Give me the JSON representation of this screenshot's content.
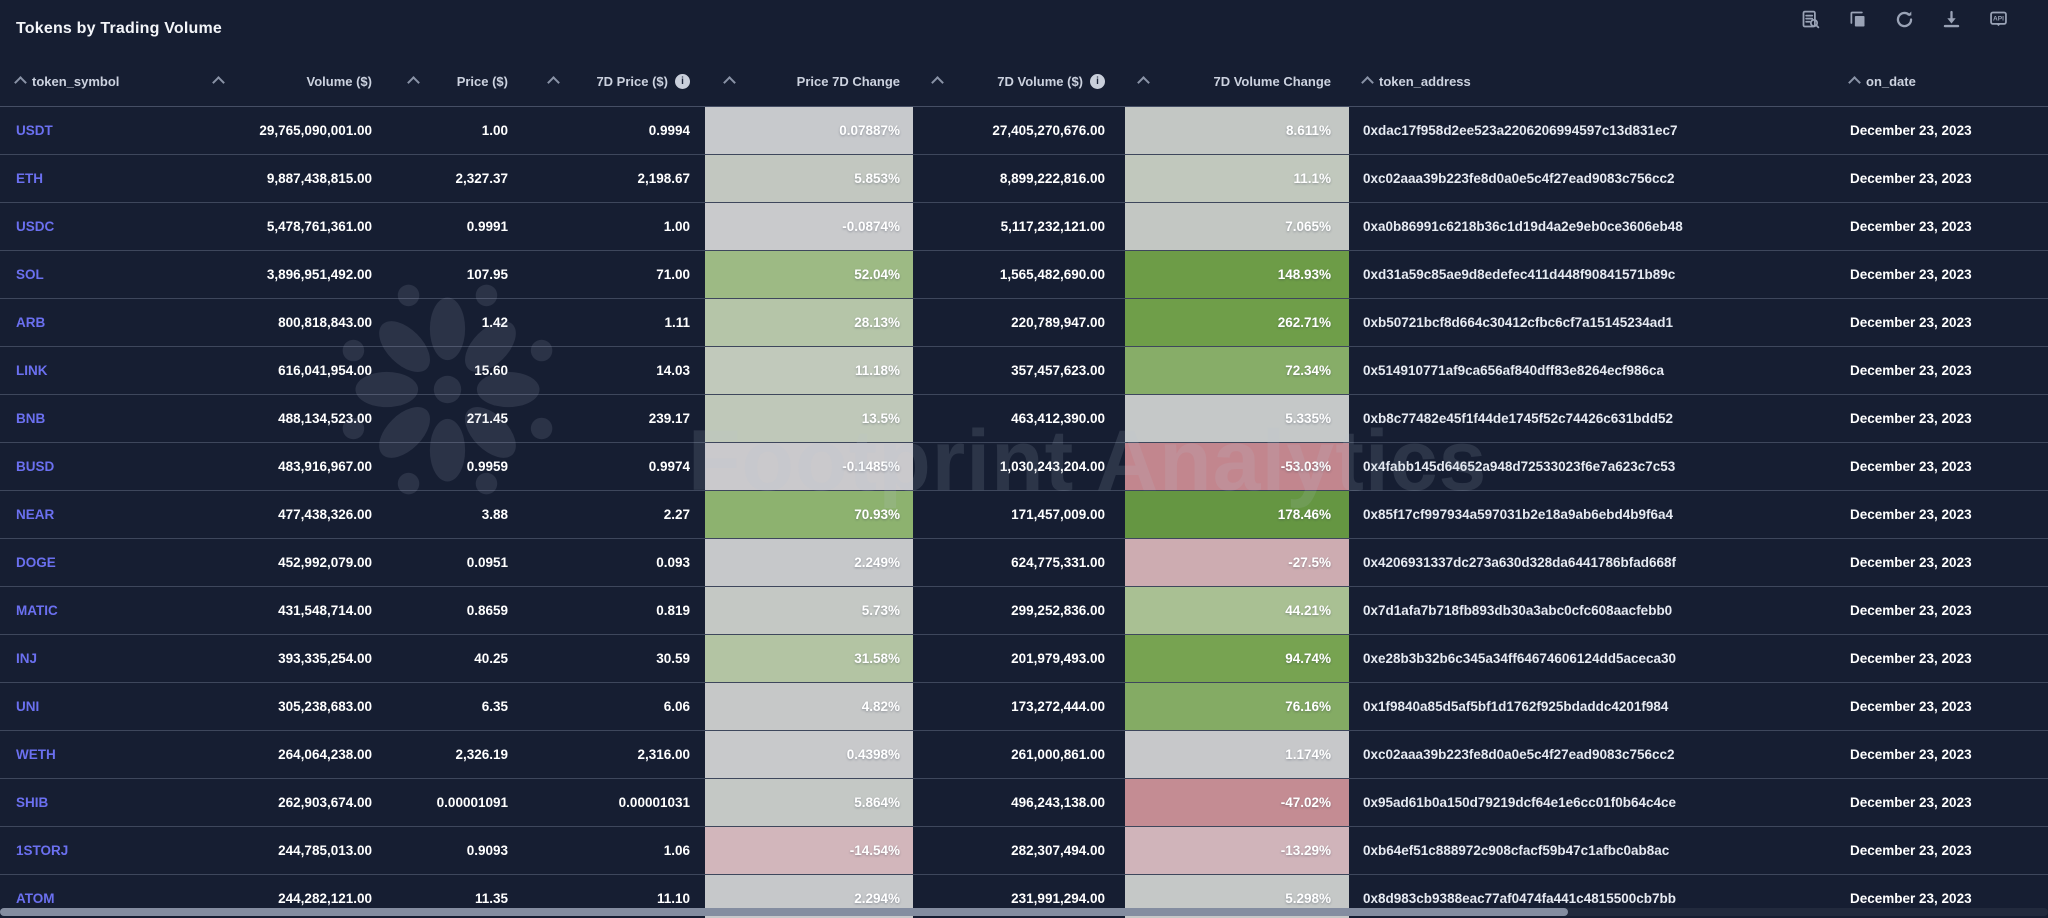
{
  "title": "Tokens by Trading Volume",
  "toolbar": {
    "api_label": "API",
    "icons": [
      "view-data",
      "copy",
      "refresh",
      "download",
      "api"
    ]
  },
  "watermark": {
    "text": "Footprint Analytics"
  },
  "colors": {
    "background": "#161e32",
    "accent_link": "#6b70f0",
    "positive_strong": "#6d9c47",
    "negative_strong": "#c2868e",
    "neutral_cell": "#c7c9cc"
  },
  "table": {
    "info_glyph": "i",
    "columns": [
      {
        "key": "symbol",
        "label": "token_symbol",
        "sortable": true
      },
      {
        "key": "volume",
        "label": "Volume ($)",
        "sortable": true
      },
      {
        "key": "price",
        "label": "Price ($)",
        "sortable": true
      },
      {
        "key": "price7d",
        "label": "7D Price ($)",
        "sortable": true,
        "info": true
      },
      {
        "key": "price_change",
        "label": "Price 7D Change",
        "sortable": true
      },
      {
        "key": "volume7d",
        "label": "7D Volume ($)",
        "sortable": true,
        "info": true
      },
      {
        "key": "volume_change",
        "label": "7D Volume Change",
        "sortable": true
      },
      {
        "key": "address",
        "label": "token_address",
        "sortable": true
      },
      {
        "key": "date",
        "label": "on_date",
        "sortable": true
      }
    ],
    "rows": [
      {
        "symbol": "USDT",
        "volume": "29,765,090,001.00",
        "price": "1.00",
        "price7d": "0.9994",
        "price_change": "0.07887%",
        "price_change_bg": "#c7c9cc",
        "volume7d": "27,405,270,676.00",
        "volume_change": "8.611%",
        "volume_change_bg": "#c3c7c4",
        "address": "0xdac17f958d2ee523a2206206994597c13d831ec7",
        "date": "December 23, 2023"
      },
      {
        "symbol": "ETH",
        "volume": "9,887,438,815.00",
        "price": "2,327.37",
        "price7d": "2,198.67",
        "price_change": "5.853%",
        "price_change_bg": "#c2c7c0",
        "volume7d": "8,899,222,816.00",
        "volume_change": "11.1%",
        "volume_change_bg": "#c1c8bd",
        "address": "0xc02aaa39b223fe8d0a0e5c4f27ead9083c756cc2",
        "date": "December 23, 2023"
      },
      {
        "symbol": "USDC",
        "volume": "5,478,761,361.00",
        "price": "0.9991",
        "price7d": "1.00",
        "price_change": "-0.0874%",
        "price_change_bg": "#c9cacc",
        "volume7d": "5,117,232,121.00",
        "volume_change": "7.065%",
        "volume_change_bg": "#c3c7c3",
        "address": "0xa0b86991c6218b36c1d19d4a2e9eb0ce3606eb48",
        "date": "December 23, 2023"
      },
      {
        "symbol": "SOL",
        "volume": "3,896,951,492.00",
        "price": "107.95",
        "price7d": "71.00",
        "price_change": "52.04%",
        "price_change_bg": "#9dba84",
        "volume7d": "1,565,482,690.00",
        "volume_change": "148.93%",
        "volume_change_bg": "#6d9c47",
        "address": "0xd31a59c85ae9d8edefec411d448f90841571b89c",
        "date": "December 23, 2023"
      },
      {
        "symbol": "ARB",
        "volume": "800,818,843.00",
        "price": "1.42",
        "price7d": "1.11",
        "price_change": "28.13%",
        "price_change_bg": "#b5c5a8",
        "volume7d": "220,789,947.00",
        "volume_change": "262.71%",
        "volume_change_bg": "#6f9e49",
        "address": "0xb50721bcf8d664c30412cfbc6cf7a15145234ad1",
        "date": "December 23, 2023"
      },
      {
        "symbol": "LINK",
        "volume": "616,041,954.00",
        "price": "15.60",
        "price7d": "14.03",
        "price_change": "11.18%",
        "price_change_bg": "#c1c9bb",
        "volume7d": "357,457,623.00",
        "volume_change": "72.34%",
        "volume_change_bg": "#87ad68",
        "address": "0x514910771af9ca656af840dff83e8264ecf986ca",
        "date": "December 23, 2023"
      },
      {
        "symbol": "BNB",
        "volume": "488,134,523.00",
        "price": "271.45",
        "price7d": "239.17",
        "price_change": "13.5%",
        "price_change_bg": "#bfc8b9",
        "volume7d": "463,412,390.00",
        "volume_change": "5.335%",
        "volume_change_bg": "#c5c8c8",
        "address": "0xb8c77482e45f1f44de1745f52c74426c631bdd52",
        "date": "December 23, 2023"
      },
      {
        "symbol": "BUSD",
        "volume": "483,916,967.00",
        "price": "0.9959",
        "price7d": "0.9974",
        "price_change": "-0.1485%",
        "price_change_bg": "#cac9cc",
        "volume7d": "1,030,243,204.00",
        "volume_change": "-53.03%",
        "volume_change_bg": "#c2868e",
        "address": "0x4fabb145d64652a948d72533023f6e7a623c7c53",
        "date": "December 23, 2023"
      },
      {
        "symbol": "NEAR",
        "volume": "477,438,326.00",
        "price": "3.88",
        "price7d": "2.27",
        "price_change": "70.93%",
        "price_change_bg": "#8db26f",
        "volume7d": "171,457,009.00",
        "volume_change": "178.46%",
        "volume_change_bg": "#659642",
        "address": "0x85f17cf997934a597031b2e18a9ab6ebd4b9f6a4",
        "date": "December 23, 2023"
      },
      {
        "symbol": "DOGE",
        "volume": "452,992,079.00",
        "price": "0.0951",
        "price7d": "0.093",
        "price_change": "2.249%",
        "price_change_bg": "#c6c8ca",
        "volume7d": "624,775,331.00",
        "volume_change": "-27.5%",
        "volume_change_bg": "#cdacb1",
        "address": "0x4206931337dc273a630d328da6441786bfad668f",
        "date": "December 23, 2023"
      },
      {
        "symbol": "MATIC",
        "volume": "431,548,714.00",
        "price": "0.8659",
        "price7d": "0.819",
        "price_change": "5.73%",
        "price_change_bg": "#c4c8c4",
        "volume7d": "299,252,836.00",
        "volume_change": "44.21%",
        "volume_change_bg": "#a9c093",
        "address": "0x7d1afa7b718fb893db30a3abc0cfc608aacfebb0",
        "date": "December 23, 2023"
      },
      {
        "symbol": "INJ",
        "volume": "393,335,254.00",
        "price": "40.25",
        "price7d": "30.59",
        "price_change": "31.58%",
        "price_change_bg": "#b3c4a3",
        "volume7d": "201,979,493.00",
        "volume_change": "94.74%",
        "volume_change_bg": "#77a351",
        "address": "0xe28b3b32b6c345a34ff64674606124dd5aceca30",
        "date": "December 23, 2023"
      },
      {
        "symbol": "UNI",
        "volume": "305,238,683.00",
        "price": "6.35",
        "price7d": "6.06",
        "price_change": "4.82%",
        "price_change_bg": "#c6c8c8",
        "volume7d": "173,272,444.00",
        "volume_change": "76.16%",
        "volume_change_bg": "#84ab64",
        "address": "0x1f9840a85d5af5bf1d1762f925bdaddc4201f984",
        "date": "December 23, 2023"
      },
      {
        "symbol": "WETH",
        "volume": "264,064,238.00",
        "price": "2,326.19",
        "price7d": "2,316.00",
        "price_change": "0.4398%",
        "price_change_bg": "#c8c9cb",
        "volume7d": "261,000,861.00",
        "volume_change": "1.174%",
        "volume_change_bg": "#c7c8ca",
        "address": "0xc02aaa39b223fe8d0a0e5c4f27ead9083c756cc2",
        "date": "December 23, 2023"
      },
      {
        "symbol": "SHIB",
        "volume": "262,903,674.00",
        "price": "0.00001091",
        "price7d": "0.00001031",
        "price_change": "5.864%",
        "price_change_bg": "#c4c8c5",
        "volume7d": "496,243,138.00",
        "volume_change": "-47.02%",
        "volume_change_bg": "#c48c93",
        "address": "0x95ad61b0a150d79219dcf64e1e6cc01f0b64c4ce",
        "date": "December 23, 2023"
      },
      {
        "symbol": "1STORJ",
        "volume": "244,785,013.00",
        "price": "0.9093",
        "price7d": "1.06",
        "price_change": "-14.54%",
        "price_change_bg": "#d2b6bb",
        "volume7d": "282,307,494.00",
        "volume_change": "-13.29%",
        "volume_change_bg": "#d0b4ba",
        "address": "0xb64ef51c888972c908cfacf59b47c1afbc0ab8ac",
        "date": "December 23, 2023"
      },
      {
        "symbol": "ATOM",
        "volume": "244,282,121.00",
        "price": "11.35",
        "price7d": "11.10",
        "price_change": "2.294%",
        "price_change_bg": "#c6c8ca",
        "volume7d": "231,991,294.00",
        "volume_change": "5.298%",
        "volume_change_bg": "#c5c8c7",
        "address": "0x8d983cb9388eac77af0474fa441c4815500cb7bb",
        "date": "December 23, 2023"
      }
    ]
  }
}
